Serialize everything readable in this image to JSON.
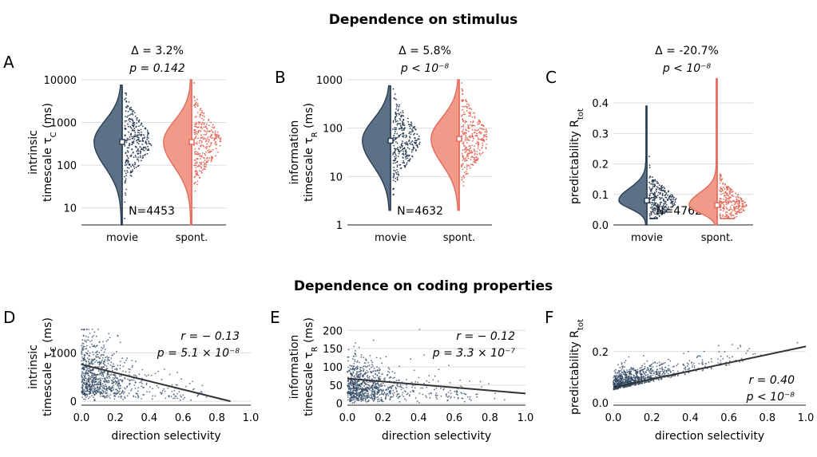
{
  "section_titles": [
    "Dependence on stimulus",
    "Dependence on coding properties"
  ],
  "colors": {
    "movie": "#5c7086",
    "movie_edge": "#2b3e55",
    "spont": "#f29a8a",
    "spont_edge": "#e5695a",
    "grid": "#dcdcdc",
    "scatter": "#2d4560",
    "fit": "#333333"
  },
  "chart_data": [
    {
      "panel": "A",
      "type": "violin",
      "ylabel": [
        "intrinsic",
        "timescale τ_C (ms)"
      ],
      "yscale": "log",
      "ylim": [
        4,
        10000
      ],
      "yticks": [
        10,
        100,
        1000,
        10000
      ],
      "yticklabels": [
        "10",
        "100",
        "1000",
        "10000"
      ],
      "categories": [
        "movie",
        "spont."
      ],
      "medians": [
        350,
        350
      ],
      "ranges": [
        [
          4,
          7500
        ],
        [
          4,
          10000
        ]
      ],
      "annotation": {
        "delta": "Δ = 3.2%",
        "p": "p = 0.142"
      },
      "n_label": "N=4453"
    },
    {
      "panel": "B",
      "type": "violin",
      "ylabel": [
        "information",
        "timescale τ_R (ms)"
      ],
      "yscale": "log",
      "ylim": [
        1,
        1000
      ],
      "yticks": [
        1,
        10,
        100,
        1000
      ],
      "yticklabels": [
        "1",
        "10",
        "100",
        "1000"
      ],
      "categories": [
        "movie",
        "spont."
      ],
      "medians": [
        55,
        60
      ],
      "ranges": [
        [
          2,
          750
        ],
        [
          2,
          1000
        ]
      ],
      "annotation": {
        "delta": "Δ = 5.8%",
        "p": "p < 10⁻⁸"
      },
      "n_label": "N=4632"
    },
    {
      "panel": "C",
      "type": "violin",
      "ylabel": [
        "predictability R_tot"
      ],
      "yscale": "linear",
      "ylim": [
        0,
        0.45
      ],
      "yticks": [
        0.0,
        0.1,
        0.2,
        0.3,
        0.4
      ],
      "yticklabels": [
        "0.0",
        "0.1",
        "0.2",
        "0.3",
        "0.4"
      ],
      "categories": [
        "movie",
        "spont."
      ],
      "medians": [
        0.08,
        0.065
      ],
      "ranges": [
        [
          0.0,
          0.39
        ],
        [
          0.0,
          0.48
        ]
      ],
      "annotation": {
        "delta": "Δ = -20.7%",
        "p": "p < 10⁻⁸"
      },
      "n_label": "N=4762"
    },
    {
      "panel": "D",
      "type": "scatter",
      "ylabel": [
        "intrinsic",
        "timescale τ_C (ms)"
      ],
      "xlabel": "direction selectivity",
      "xlim": [
        0,
        1
      ],
      "ylim": [
        -80,
        1500
      ],
      "xticks": [
        "0.0",
        "0.2",
        "0.4",
        "0.6",
        "0.8",
        "1.0"
      ],
      "yticks": [
        0,
        1000
      ],
      "yticklabels": [
        "0",
        "1000"
      ],
      "fit": {
        "x": [
          0,
          0.88
        ],
        "y": [
          760,
          0
        ]
      },
      "annotation": {
        "r": "r = − 0.13",
        "p": "p = 5.1 × 10⁻⁸"
      }
    },
    {
      "panel": "E",
      "type": "scatter",
      "ylabel": [
        "information",
        "timescale τ_R (ms)"
      ],
      "xlabel": "direction selectivity",
      "xlim": [
        0,
        1
      ],
      "ylim": [
        -5,
        205
      ],
      "xticks": [
        "0.0",
        "0.2",
        "0.4",
        "0.6",
        "0.8",
        "1.0"
      ],
      "yticks": [
        0,
        50,
        100,
        150,
        200
      ],
      "yticklabels": [
        "0",
        "50",
        "100",
        "150",
        "200"
      ],
      "fit": {
        "x": [
          0,
          1
        ],
        "y": [
          68,
          27
        ]
      },
      "annotation": {
        "r": "r = − 0.12",
        "p": "p = 3.3 × 10⁻⁷"
      }
    },
    {
      "panel": "F",
      "type": "scatter",
      "ylabel": [
        "predictability R_tot"
      ],
      "xlabel": "direction selectivity",
      "xlim": [
        0,
        1
      ],
      "ylim": [
        -0.01,
        0.29
      ],
      "xticks": [
        "0.0",
        "0.2",
        "0.4",
        "0.6",
        "0.8",
        "1.0"
      ],
      "yticks": [
        0.0,
        0.2
      ],
      "yticklabels": [
        "0.0",
        "0.2"
      ],
      "fit": {
        "x": [
          0,
          1
        ],
        "y": [
          0.06,
          0.22
        ]
      },
      "annotation": {
        "r": "r = 0.40",
        "p": "p < 10⁻⁸"
      }
    }
  ]
}
